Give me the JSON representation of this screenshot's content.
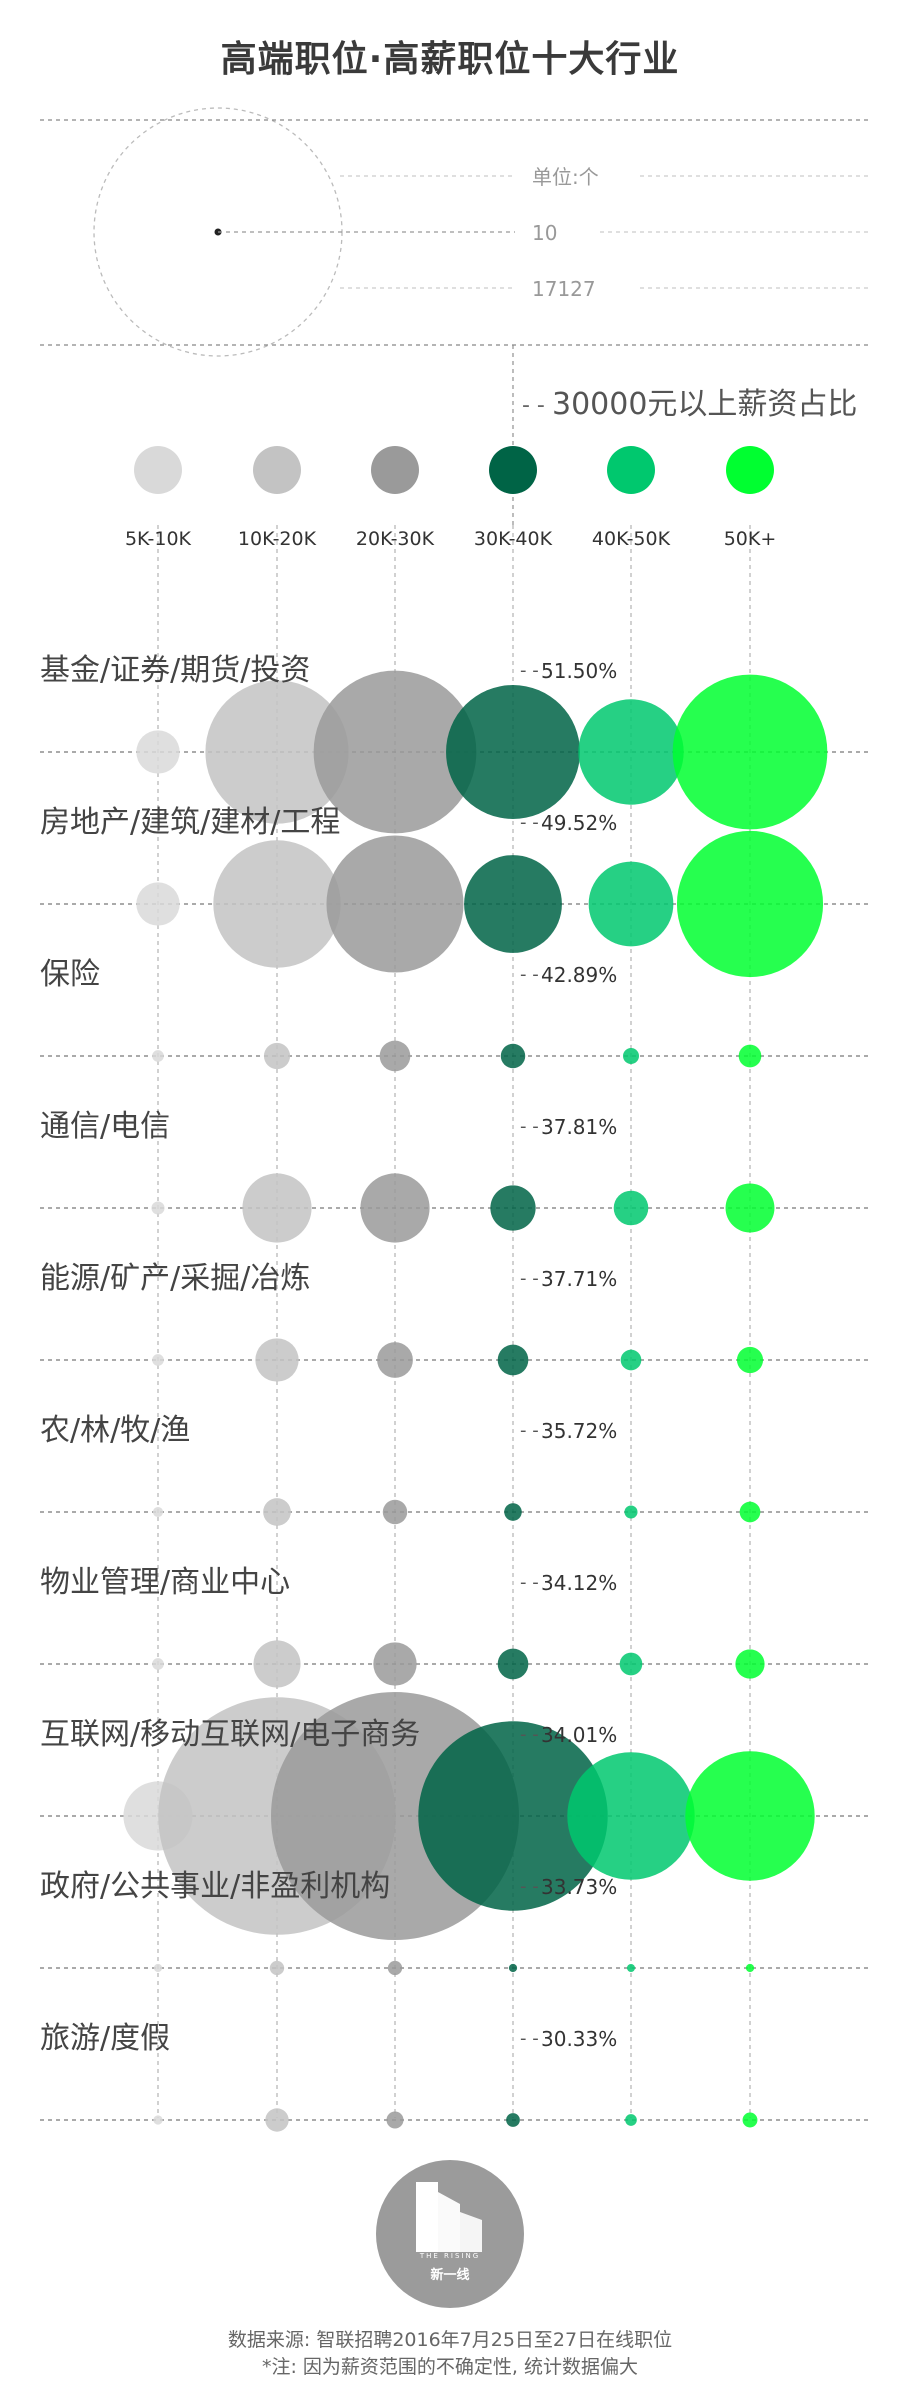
{
  "title": "高端职位·高薪职位十大行业",
  "key": {
    "unit_label": "单位:个",
    "small_value": "10",
    "large_value": "17127"
  },
  "chart_data": {
    "type": "scatter",
    "title": "高端职位·高薪职位十大行业",
    "unit": "单位:个",
    "size_legend": [
      10,
      17127
    ],
    "share_label": "30000元以上薪资占比",
    "categories": [
      "5K-10K",
      "10K-20K",
      "20K-30K",
      "30K-40K",
      "40K-50K",
      "50K+"
    ],
    "category_colors": [
      "#d9d9d9",
      "#c3c3c3",
      "#9a9a9a",
      "#006446",
      "#00c86e",
      "#00ff30"
    ],
    "industries": [
      {
        "name": "基金/证券/期货/投资",
        "share": "51.50%",
        "values": [
          1100,
          12000,
          15500,
          10500,
          6500,
          14000
        ]
      },
      {
        "name": "房地产/建筑/建材/工程",
        "share": "49.52%",
        "values": [
          1100,
          9500,
          11000,
          5600,
          4200,
          12500
        ]
      },
      {
        "name": "保险",
        "share": "42.89%",
        "values": [
          80,
          400,
          550,
          350,
          150,
          300
        ]
      },
      {
        "name": "通信/电信",
        "share": "37.81%",
        "values": [
          100,
          2800,
          2800,
          1200,
          700,
          1400
        ]
      },
      {
        "name": "能源/矿产/采掘/冶炼",
        "share": "37.71%",
        "values": [
          80,
          1100,
          750,
          550,
          250,
          400
        ]
      },
      {
        "name": "农/林/牧/渔",
        "share": "35.72%",
        "values": [
          60,
          450,
          350,
          180,
          100,
          250
        ]
      },
      {
        "name": "物业管理/商业中心",
        "share": "34.12%",
        "values": [
          80,
          1300,
          1100,
          550,
          300,
          500
        ]
      },
      {
        "name": "互联网/移动互联网/电子商务",
        "share": "34.01%",
        "values": [
          2800,
          33000,
          36000,
          21000,
          9500,
          9800
        ]
      },
      {
        "name": "政府/公共事业/非盈利机构",
        "share": "33.73%",
        "values": [
          40,
          120,
          120,
          40,
          30,
          40
        ]
      },
      {
        "name": "旅游/度假",
        "share": "30.33%",
        "values": [
          50,
          320,
          170,
          110,
          80,
          130
        ]
      }
    ]
  },
  "footer": {
    "source": "数据来源: 智联招聘2016年7月25日至27日在线职位",
    "note": "*注: 因为薪资范围的不确定性, 统计数据偏大"
  },
  "logo": {
    "text": "新一线",
    "tagline": "THE RISING"
  }
}
